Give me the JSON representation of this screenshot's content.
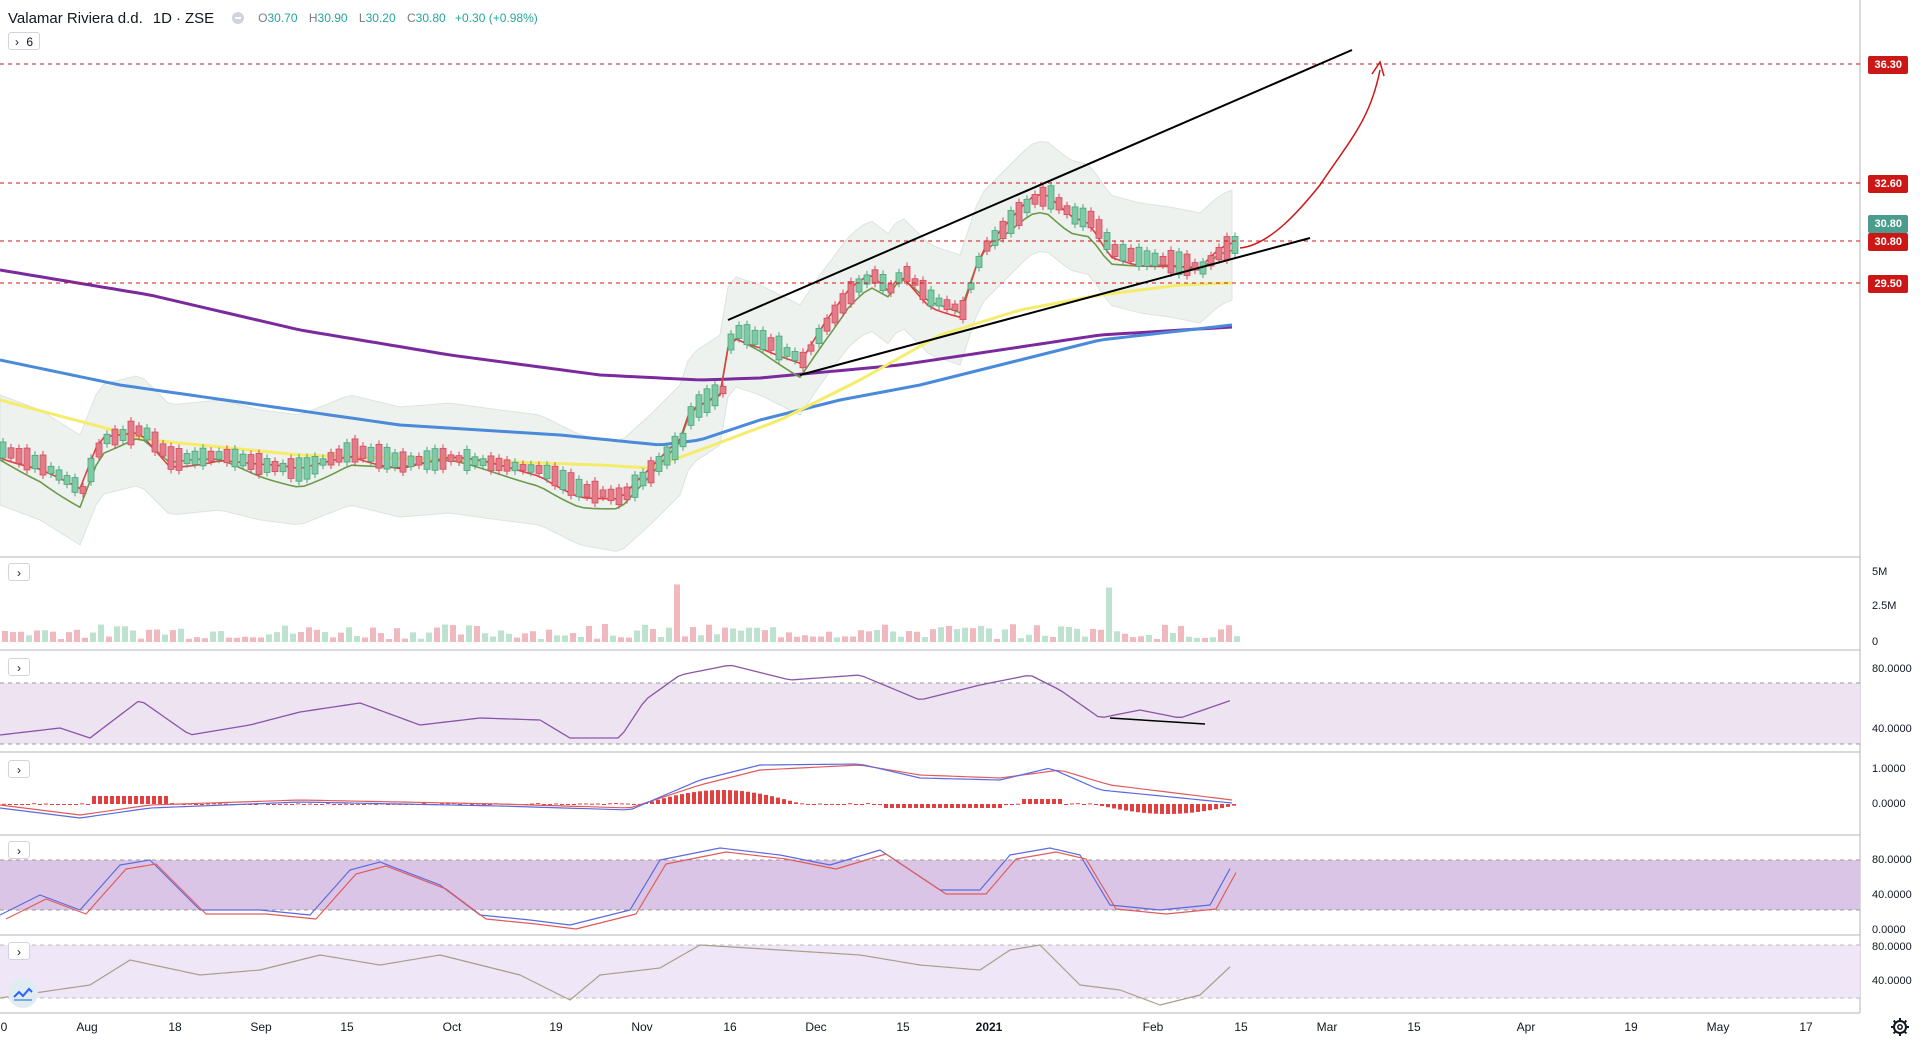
{
  "header": {
    "symbol": "Valamar Riviera d.d.",
    "interval": "1D",
    "exchange": "ZSE",
    "open_label": "O",
    "open": "30.70",
    "high_label": "H",
    "high": "30.90",
    "low_label": "L",
    "low": "30.20",
    "close_label": "C",
    "close": "30.80",
    "change": "+0.30 (+0.98%)",
    "indicator_count": "6"
  },
  "price_axis": {
    "labels": [
      "36.30",
      "32.60",
      "30.80",
      "30.80",
      "29.50"
    ],
    "label_colors": [
      "#cc1717",
      "#cc1717",
      "#4a9c8c",
      "#cc1717",
      "#cc1717"
    ]
  },
  "volume_axis": {
    "labels": [
      "5M",
      "2.5M",
      "0"
    ]
  },
  "rsi_axis": {
    "labels": [
      "80.0000",
      "40.0000"
    ]
  },
  "macd_axis": {
    "labels": [
      "1.0000",
      "0.0000"
    ]
  },
  "stoch_axis": {
    "labels": [
      "80.0000",
      "40.0000",
      "0.0000"
    ]
  },
  "osc_axis": {
    "labels": [
      "80.0000",
      "40.0000"
    ]
  },
  "time_axis": {
    "labels": [
      "0",
      "Aug",
      "18",
      "Sep",
      "15",
      "Oct",
      "19",
      "Nov",
      "16",
      "Dec",
      "15",
      "2021",
      "Feb",
      "15",
      "Mar",
      "15",
      "Apr",
      "19",
      "May",
      "17"
    ]
  },
  "colors": {
    "up": "#4aa37a",
    "down": "#d9475a",
    "level": "#cc1717",
    "ma_purple": "#7b2a9e",
    "ma_blue": "#4a8ad9",
    "ma_yellow": "#f5ec6a",
    "ma_red": "#e04040",
    "ma_green": "#6b9a4a"
  },
  "icons": {
    "collapse": "chevron-right-icon",
    "settings": "gear-icon",
    "logo": "tradingview-logo"
  }
}
